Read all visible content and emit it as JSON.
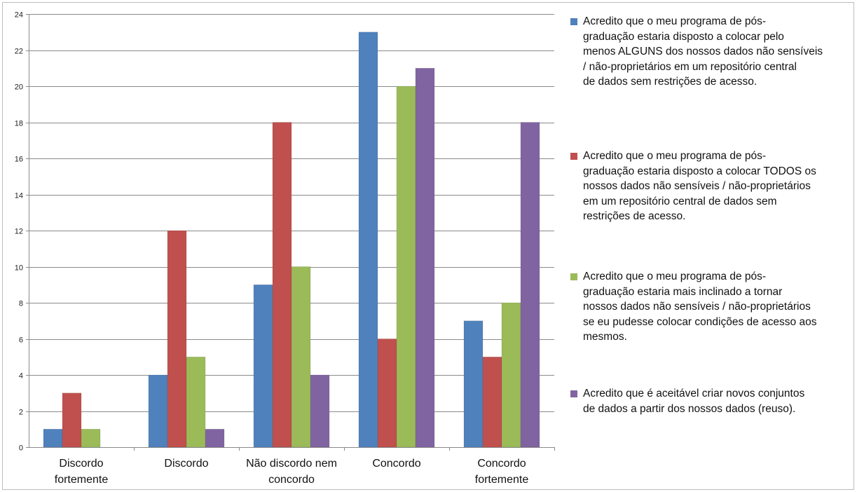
{
  "chart_data": {
    "type": "bar",
    "categories": [
      "Discordo fortemente",
      "Discordo",
      "Não discordo nem concordo",
      "Concordo",
      "Concordo fortemente"
    ],
    "category_labels": [
      [
        "Discordo",
        "fortemente"
      ],
      [
        "Discordo"
      ],
      [
        "Não discordo nem",
        "concordo"
      ],
      [
        "Concordo"
      ],
      [
        "Concordo",
        "fortemente"
      ]
    ],
    "series": [
      {
        "name": "Acredito que o meu programa de pós-graduação estaria disposto a colocar pelo menos ALGUNS dos nossos dados não sensíveis / não-proprietários em um repositório central de dados sem restrições de acesso.",
        "color": "#4F81BD",
        "values": [
          1,
          4,
          9,
          23,
          7
        ]
      },
      {
        "name": "Acredito que o meu programa de pós-graduação estaria disposto a colocar TODOS os nossos dados não sensíveis / não-proprietários em um repositório central de dados sem restrições de acesso.",
        "color": "#C0504D",
        "values": [
          3,
          12,
          18,
          6,
          5
        ]
      },
      {
        "name": "Acredito que o meu programa de pós-graduação estaria mais inclinado a tornar nossos dados não sensíveis / não-proprietários se eu pudesse colocar condições de acesso aos mesmos.",
        "color": "#9BBB59",
        "values": [
          1,
          5,
          10,
          20,
          8
        ]
      },
      {
        "name": "Acredito que é aceitável criar novos conjuntos de dados a partir dos nossos dados (reuso).",
        "color": "#8064A2",
        "values": [
          0,
          1,
          4,
          21,
          18
        ]
      }
    ],
    "legend_lines": [
      [
        "Acredito que o meu programa de pós-",
        "graduação estaria disposto a colocar pelo",
        "menos ALGUNS dos nossos dados não sensíveis",
        "/ não-proprietários em um repositório central",
        "de dados sem restrições de acesso."
      ],
      [
        "Acredito que o meu programa de pós-",
        "graduação estaria disposto a colocar TODOS os",
        "nossos dados não sensíveis / não-proprietários",
        "em um repositório central de dados sem",
        "restrições de acesso."
      ],
      [
        "Acredito que o meu programa de pós-",
        "graduação estaria mais inclinado a tornar",
        "nossos dados não sensíveis / não-proprietários",
        "se eu pudesse colocar condições de acesso aos",
        "mesmos."
      ],
      [
        "Acredito que é aceitável criar novos conjuntos",
        "de dados a partir dos nossos dados (reuso)."
      ]
    ],
    "ylim": [
      0,
      24
    ],
    "yticks": [
      0,
      2,
      4,
      6,
      8,
      10,
      12,
      14,
      16,
      18,
      20,
      22,
      24
    ],
    "grid": true,
    "legend_position": "right",
    "title": "",
    "xlabel": "",
    "ylabel": ""
  }
}
